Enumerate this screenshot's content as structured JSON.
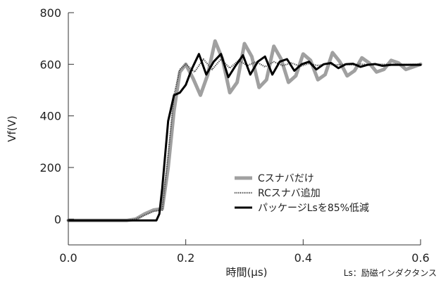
{
  "chart_data": {
    "type": "line",
    "xlabel": "時間(μs)",
    "ylabel": "Vf(V)",
    "xlim": [
      0.0,
      0.6
    ],
    "ylim": [
      -100,
      800
    ],
    "x_ticks": [
      "0.0",
      "0.2",
      "0.4",
      "0.6"
    ],
    "y_ticks": [
      "0",
      "200",
      "400",
      "600",
      "800"
    ],
    "grid": false,
    "legend_position": "center-right",
    "note": "Ls：励磁インダクタンス",
    "series": [
      {
        "name": "Cスナバだけ",
        "color": "#a0a0a0",
        "style": "thick-gray",
        "x": [
          0.0,
          0.1,
          0.115,
          0.13,
          0.145,
          0.16,
          0.17,
          0.18,
          0.19,
          0.2,
          0.2125,
          0.225,
          0.2375,
          0.25,
          0.2625,
          0.275,
          0.2875,
          0.3,
          0.3125,
          0.325,
          0.3375,
          0.35,
          0.3625,
          0.375,
          0.3875,
          0.4,
          0.4125,
          0.425,
          0.4375,
          0.45,
          0.4625,
          0.475,
          0.4875,
          0.5,
          0.5125,
          0.525,
          0.5375,
          0.55,
          0.5625,
          0.575,
          0.5875,
          0.6
        ],
        "y": [
          -5,
          -5,
          0,
          20,
          35,
          40,
          200,
          420,
          570,
          600,
          545,
          480,
          560,
          690,
          620,
          490,
          530,
          680,
          630,
          510,
          540,
          670,
          620,
          530,
          555,
          640,
          615,
          540,
          560,
          645,
          610,
          555,
          575,
          625,
          605,
          570,
          580,
          615,
          605,
          580,
          590,
          600
        ]
      },
      {
        "name": "RCスナバ追加",
        "color": "#444444",
        "style": "dotted",
        "x": [
          0.0,
          0.1,
          0.115,
          0.13,
          0.145,
          0.16,
          0.17,
          0.18,
          0.19,
          0.2,
          0.215,
          0.23,
          0.245,
          0.26,
          0.275,
          0.29,
          0.305,
          0.32,
          0.335,
          0.35,
          0.365,
          0.38,
          0.395,
          0.41,
          0.425,
          0.44,
          0.455,
          0.47,
          0.485,
          0.5,
          0.515,
          0.53,
          0.545,
          0.56,
          0.575,
          0.59,
          0.6
        ],
        "y": [
          -5,
          -5,
          0,
          15,
          30,
          35,
          250,
          480,
          580,
          600,
          570,
          620,
          580,
          620,
          585,
          615,
          595,
          610,
          590,
          610,
          595,
          605,
          592,
          603,
          595,
          602,
          597,
          600,
          598,
          600,
          598,
          600,
          599,
          600,
          599,
          600,
          600
        ]
      },
      {
        "name": "パッケージLsを85%低減",
        "color": "#000000",
        "style": "thick-black",
        "x": [
          0.0,
          0.1,
          0.15,
          0.155,
          0.16,
          0.17,
          0.18,
          0.19,
          0.2,
          0.21,
          0.2225,
          0.235,
          0.2475,
          0.26,
          0.2725,
          0.285,
          0.2975,
          0.31,
          0.3225,
          0.335,
          0.3475,
          0.36,
          0.3725,
          0.385,
          0.3975,
          0.41,
          0.4225,
          0.435,
          0.4475,
          0.46,
          0.4725,
          0.485,
          0.4975,
          0.51,
          0.5225,
          0.535,
          0.55,
          0.57,
          0.59,
          0.6
        ],
        "y": [
          -5,
          -5,
          -5,
          20,
          120,
          380,
          480,
          490,
          520,
          580,
          640,
          560,
          610,
          640,
          550,
          595,
          635,
          560,
          610,
          630,
          560,
          610,
          620,
          575,
          600,
          610,
          580,
          600,
          605,
          585,
          600,
          602,
          590,
          598,
          601,
          594,
          598,
          598,
          598,
          598
        ]
      }
    ]
  }
}
